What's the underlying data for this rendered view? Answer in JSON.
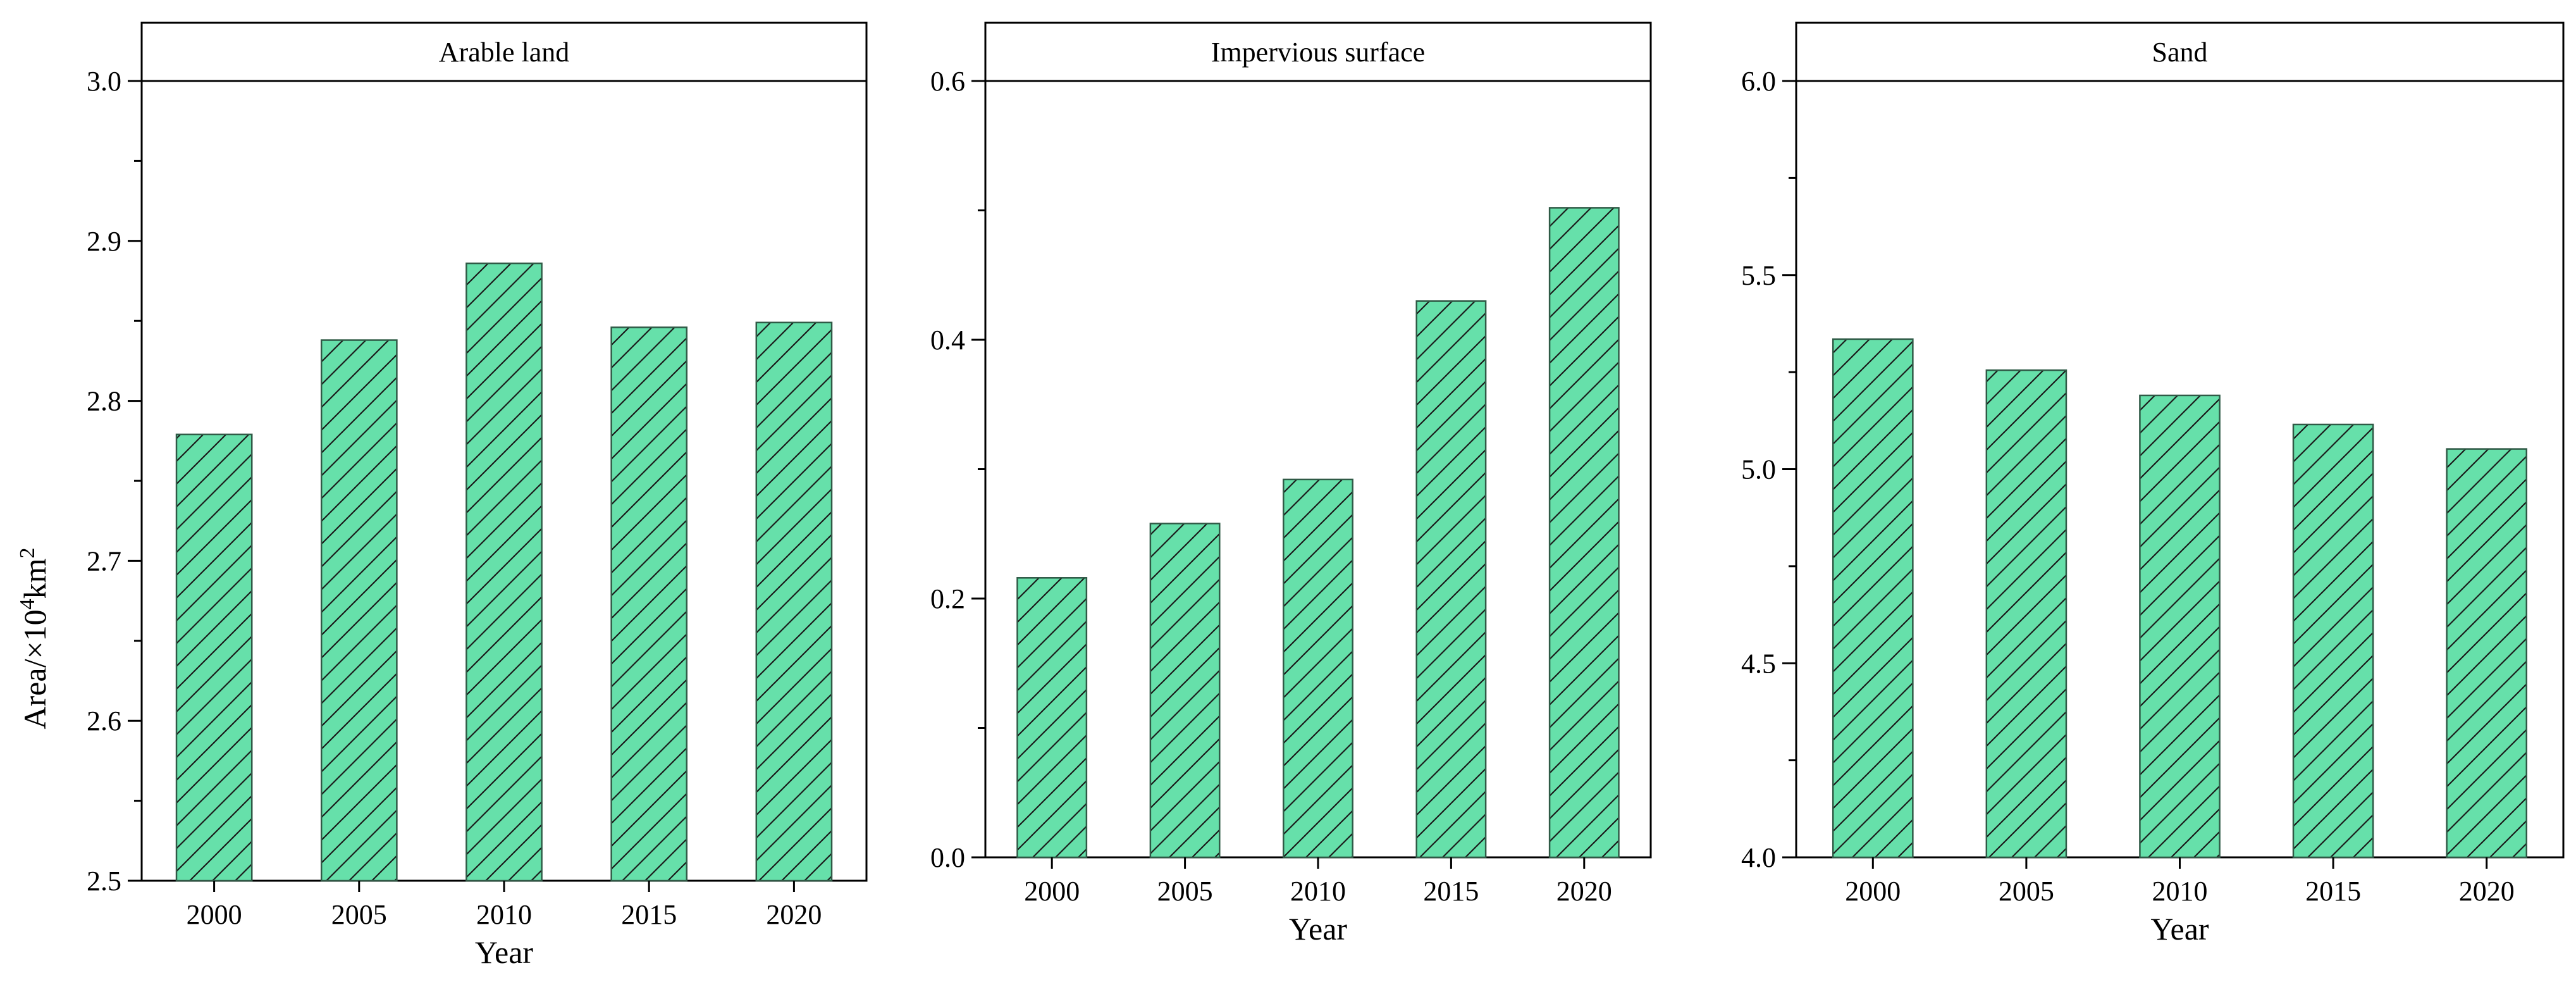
{
  "colors": {
    "bar_fill": "#66e0aa",
    "bar_stroke": "#2f5a46",
    "hatch": "#1a1a1a",
    "axis": "#000000"
  },
  "ylabel_prefix": "Area/×10",
  "ylabel_exp1": "4",
  "ylabel_mid": "km",
  "ylabel_exp2": "2",
  "chart_data": [
    {
      "type": "bar",
      "title": "Arable land",
      "categories": [
        "2000",
        "2005",
        "2010",
        "2015",
        "2020"
      ],
      "values": [
        2.779,
        2.838,
        2.886,
        2.846,
        2.849
      ],
      "xlabel": "Year",
      "ylabel": "Area/×10⁴km²",
      "ylim": [
        2.5,
        3.0
      ],
      "yticks": [
        2.5,
        2.6,
        2.7,
        2.8,
        2.9,
        3.0
      ],
      "ytick_labels": [
        "2.5",
        "2.6",
        "2.7",
        "2.8",
        "2.9",
        "3.0"
      ],
      "hatch": "diagonal",
      "grid": false,
      "legend": "none"
    },
    {
      "type": "bar",
      "title": "Impervious surface",
      "categories": [
        "2000",
        "2005",
        "2010",
        "2015",
        "2020"
      ],
      "values": [
        0.216,
        0.258,
        0.292,
        0.43,
        0.502
      ],
      "xlabel": "Year",
      "ylabel": "",
      "ylim": [
        0.0,
        0.6
      ],
      "yticks": [
        0.0,
        0.2,
        0.4,
        0.6
      ],
      "ytick_labels": [
        "0.0",
        "0.2",
        "0.4",
        "0.6"
      ],
      "hatch": "diagonal",
      "grid": false,
      "legend": "none"
    },
    {
      "type": "bar",
      "title": "Sand",
      "categories": [
        "2000",
        "2005",
        "2010",
        "2015",
        "2020"
      ],
      "values": [
        5.335,
        5.255,
        5.19,
        5.115,
        5.052
      ],
      "xlabel": "Year",
      "ylabel": "",
      "ylim": [
        4.0,
        6.0
      ],
      "yticks": [
        4.0,
        4.5,
        5.0,
        5.5,
        6.0
      ],
      "ytick_labels": [
        "4.0",
        "4.5",
        "5.0",
        "5.5",
        "6.0"
      ],
      "hatch": "diagonal",
      "grid": false,
      "legend": "none"
    }
  ]
}
